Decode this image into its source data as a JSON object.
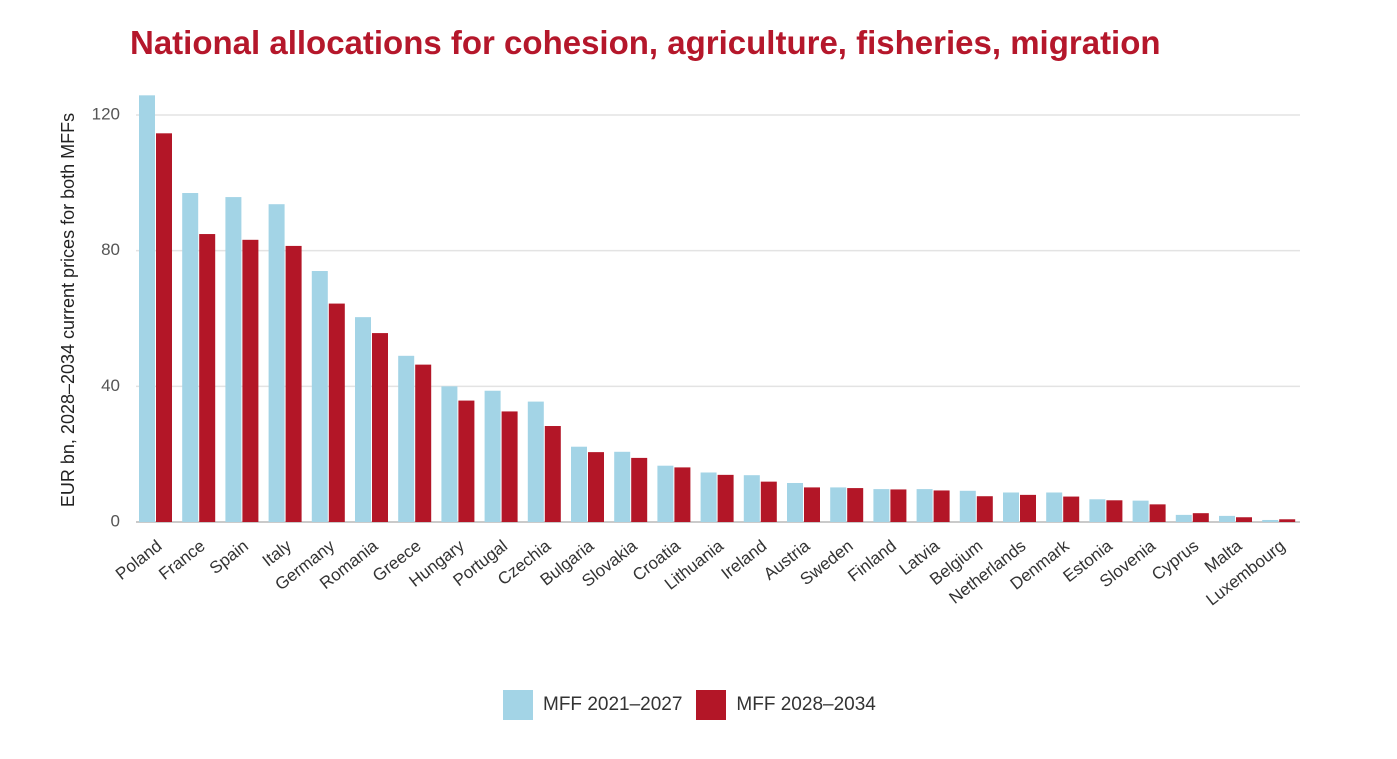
{
  "chart_data": {
    "type": "bar",
    "title": "National allocations for cohesion, agriculture, fisheries, migration",
    "xlabel": "",
    "ylabel": "EUR bn, 2028–2034 current prices for both MFFs",
    "ylim": [
      0,
      130
    ],
    "yticks": [
      0,
      40,
      80,
      120
    ],
    "grid": true,
    "legend_position": "bottom-center",
    "categories": [
      "Poland",
      "France",
      "Spain",
      "Italy",
      "Germany",
      "Romania",
      "Greece",
      "Hungary",
      "Portugal",
      "Czechia",
      "Bulgaria",
      "Slovakia",
      "Croatia",
      "Lithuania",
      "Ireland",
      "Austria",
      "Sweden",
      "Finland",
      "Latvia",
      "Belgium",
      "Netherlands",
      "Denmark",
      "Estonia",
      "Slovenia",
      "Cyprus",
      "Malta",
      "Luxembourg"
    ],
    "series": [
      {
        "name": "MFF 2021–2027",
        "color": "#a3d4e6",
        "values": [
          125.8,
          97.0,
          95.8,
          93.7,
          74.0,
          60.4,
          49.0,
          40.0,
          38.7,
          35.5,
          22.2,
          20.7,
          16.6,
          14.6,
          13.8,
          11.5,
          10.2,
          9.7,
          9.7,
          9.2,
          8.7,
          8.7,
          6.7,
          6.3,
          2.1,
          1.8,
          0.6
        ]
      },
      {
        "name": "MFF 2028–2034",
        "color": "#b31627",
        "values": [
          114.6,
          84.9,
          83.2,
          81.4,
          64.4,
          55.7,
          46.4,
          35.8,
          32.6,
          28.3,
          20.6,
          18.9,
          16.1,
          13.9,
          11.9,
          10.2,
          10.0,
          9.6,
          9.3,
          7.6,
          8.0,
          7.5,
          6.4,
          5.2,
          2.6,
          1.4,
          0.8
        ]
      }
    ]
  }
}
